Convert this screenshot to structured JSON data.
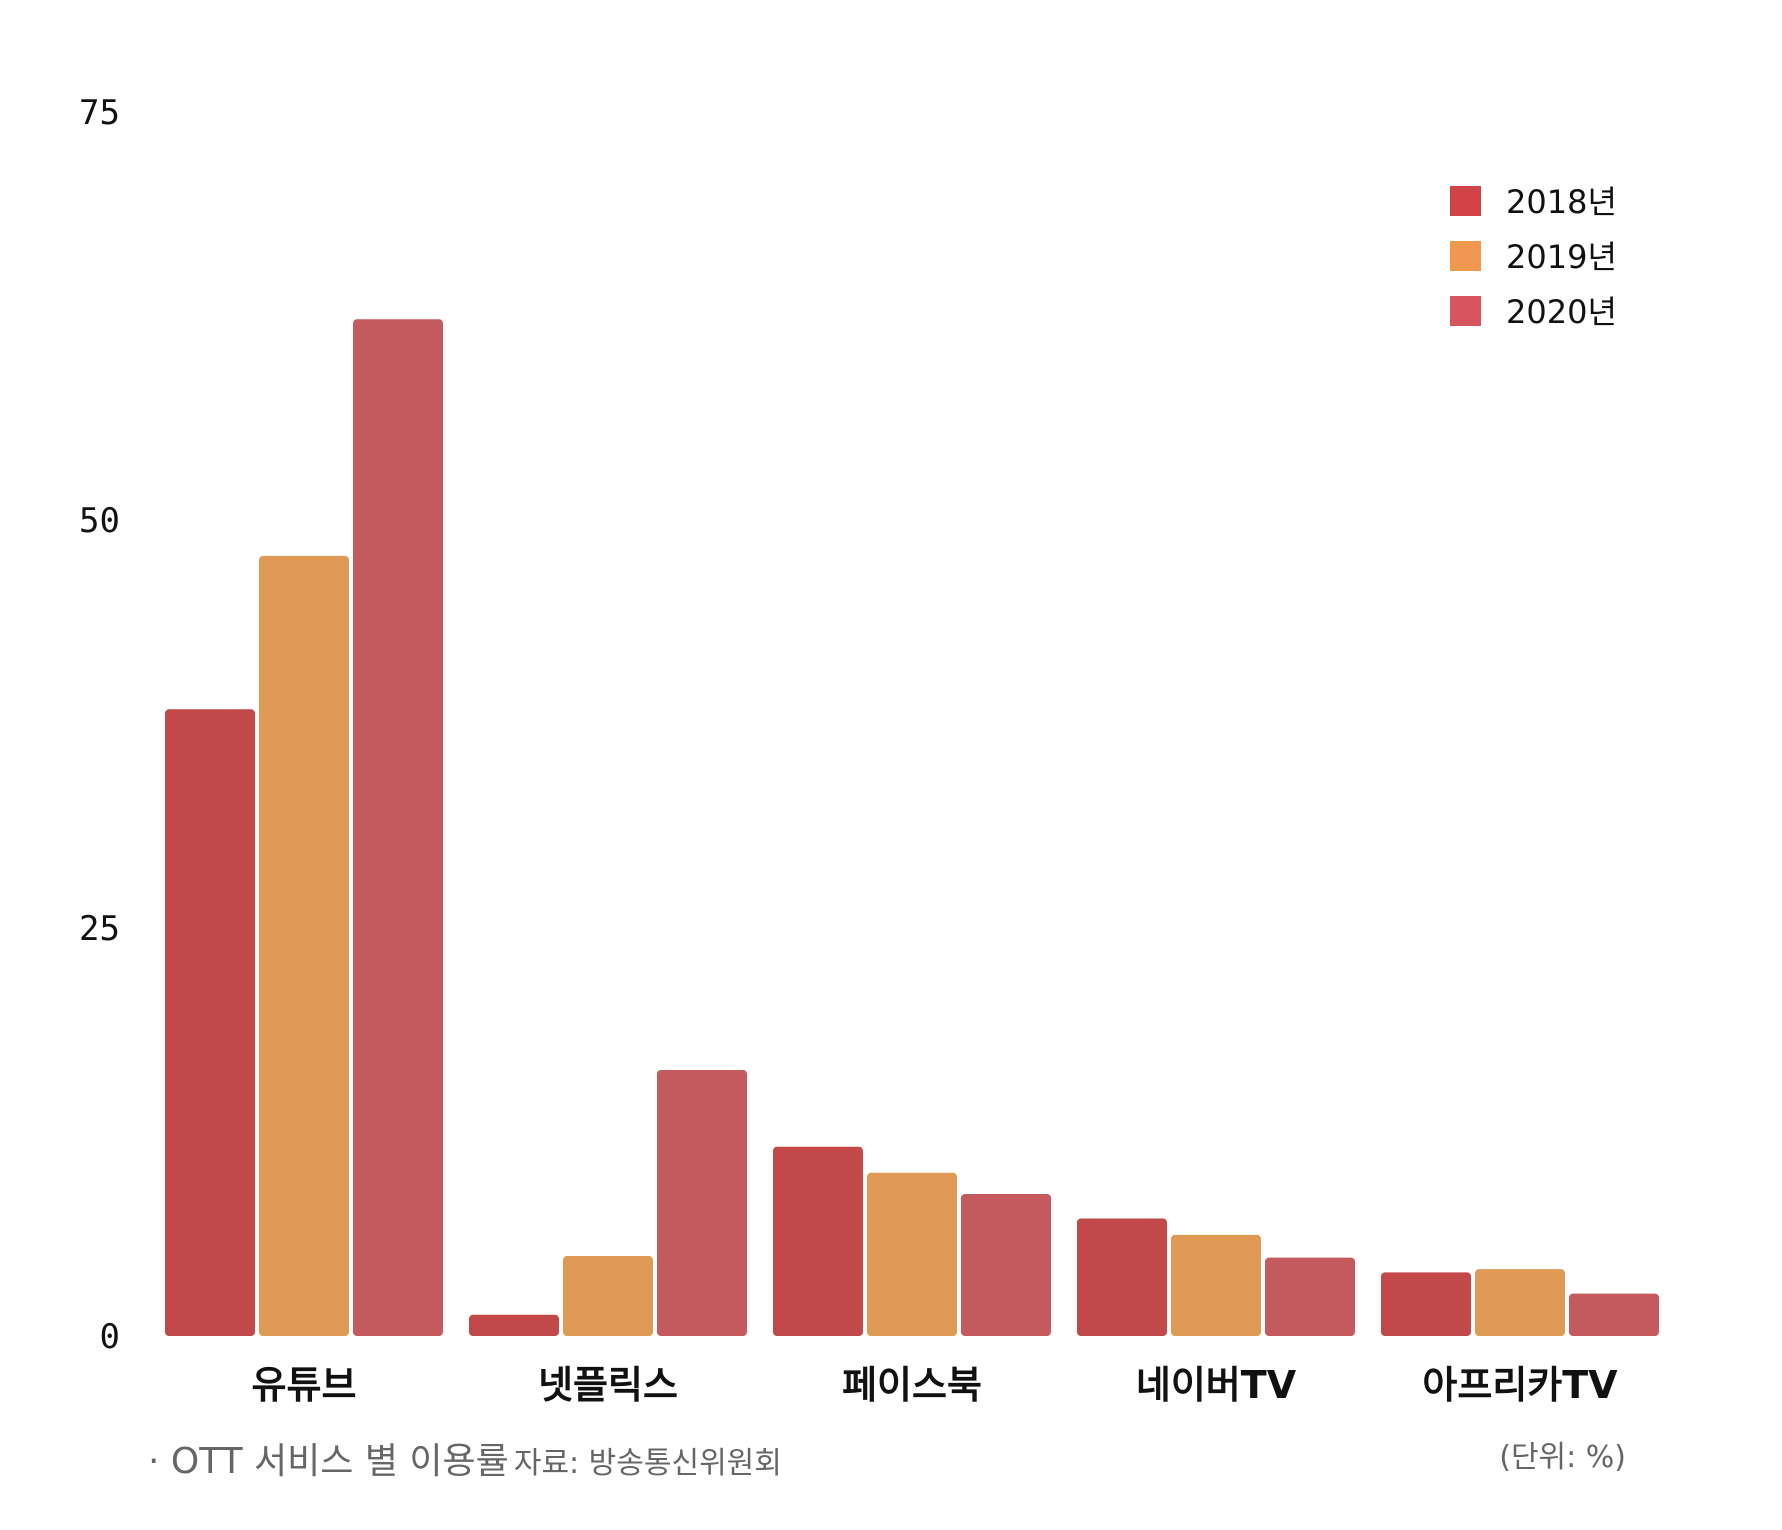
{
  "chart_data": {
    "type": "bar",
    "categories": [
      "유튜브",
      "넷플릭스",
      "페이스북",
      "네이버TV",
      "아프리카TV"
    ],
    "series": [
      {
        "name": "2018년",
        "color": "#c1494a",
        "values": [
          38.4,
          1.3,
          11.6,
          7.2,
          3.9
        ]
      },
      {
        "name": "2019년",
        "color": "#e09a55",
        "values": [
          47.8,
          4.9,
          10.0,
          6.2,
          4.1
        ]
      },
      {
        "name": "2020년",
        "color": "#c55a5e",
        "values": [
          62.3,
          16.3,
          8.7,
          4.8,
          2.6
        ]
      }
    ],
    "legend_colors": [
      "#d24347",
      "#f0984f",
      "#d6545e"
    ],
    "yticks": [
      0,
      25,
      50,
      75
    ],
    "ylim": [
      0,
      75
    ],
    "grid": false,
    "legend_position": "top-right"
  },
  "footer": {
    "title": "· OTT 서비스 별 이용률",
    "source": "자료: 방송통신위원회",
    "unit": "(단위: %)"
  }
}
